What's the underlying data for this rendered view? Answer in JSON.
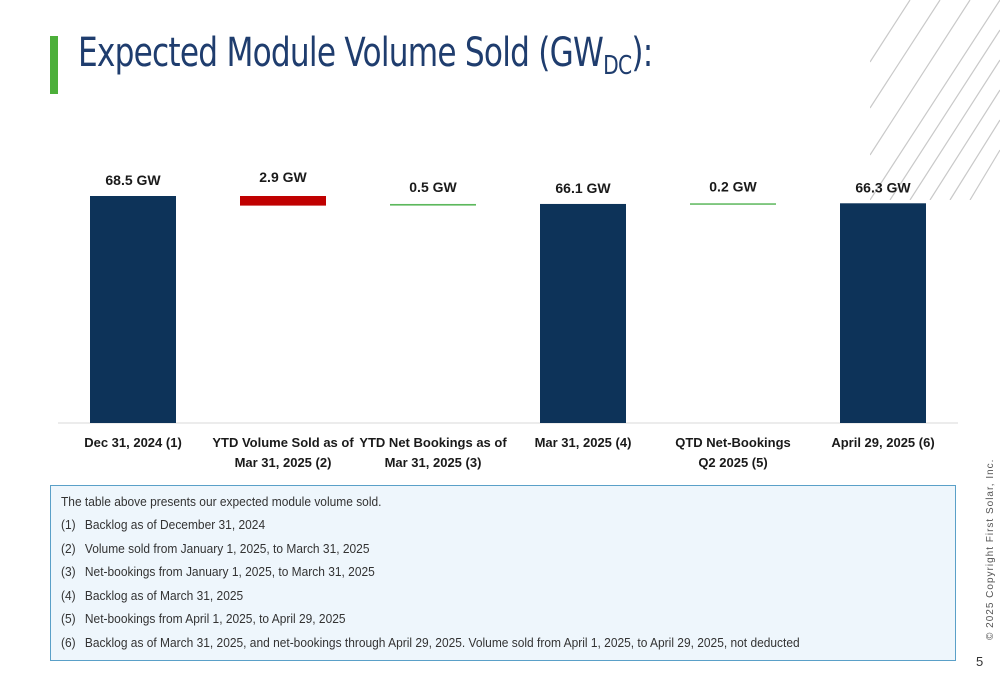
{
  "slide": {
    "title_main": "Expected Module Volume Sold (GW",
    "title_sub": "DC",
    "title_end": "):",
    "copyright": "© 2025 Copyright First Solar, Inc.",
    "page_number": "5"
  },
  "chart_data": {
    "type": "bar",
    "subtype": "waterfall",
    "categories": [
      [
        "Dec 31, 2024  (1)"
      ],
      [
        "YTD Volume Sold as of",
        "Mar 31, 2025  (2)"
      ],
      [
        "YTD Net Bookings as of",
        "Mar 31, 2025  (3)"
      ],
      [
        "Mar 31, 2025  (4)"
      ],
      [
        "QTD Net-Bookings",
        "Q2 2025  (5)"
      ],
      [
        "April 29, 2025  (6)"
      ]
    ],
    "values": [
      68.5,
      -2.9,
      0.5,
      66.1,
      0.2,
      66.3
    ],
    "kinds": [
      "total",
      "decrease",
      "increase",
      "total",
      "increase",
      "total"
    ],
    "data_labels": [
      "68.5 GW",
      "2.9 GW",
      "0.5 GW",
      "66.1 GW",
      "0.2 GW",
      "66.3 GW"
    ],
    "colors": {
      "total": "#0d3359",
      "decrease": "#c00000",
      "increase": "#5cb85c"
    },
    "ylim": [
      0,
      68.5
    ],
    "grid": false,
    "legend": "none"
  },
  "notes": {
    "intro": "The table above presents our expected module volume sold.",
    "items": [
      {
        "num": "(1)",
        "text": "Backlog as of December 31, 2024"
      },
      {
        "num": "(2)",
        "text": "Volume sold from January 1, 2025, to March 31, 2025"
      },
      {
        "num": "(3)",
        "text": "Net-bookings from January 1, 2025, to March 31, 2025"
      },
      {
        "num": "(4)",
        "text": "Backlog as of March 31, 2025"
      },
      {
        "num": "(5)",
        "text": "Net-bookings from April 1, 2025, to April 29, 2025"
      },
      {
        "num": "(6)",
        "text": "Backlog as of March 31, 2025, and net-bookings through April 29, 2025.  Volume sold from April 1, 2025, to April 29, 2025, not deducted"
      }
    ]
  }
}
